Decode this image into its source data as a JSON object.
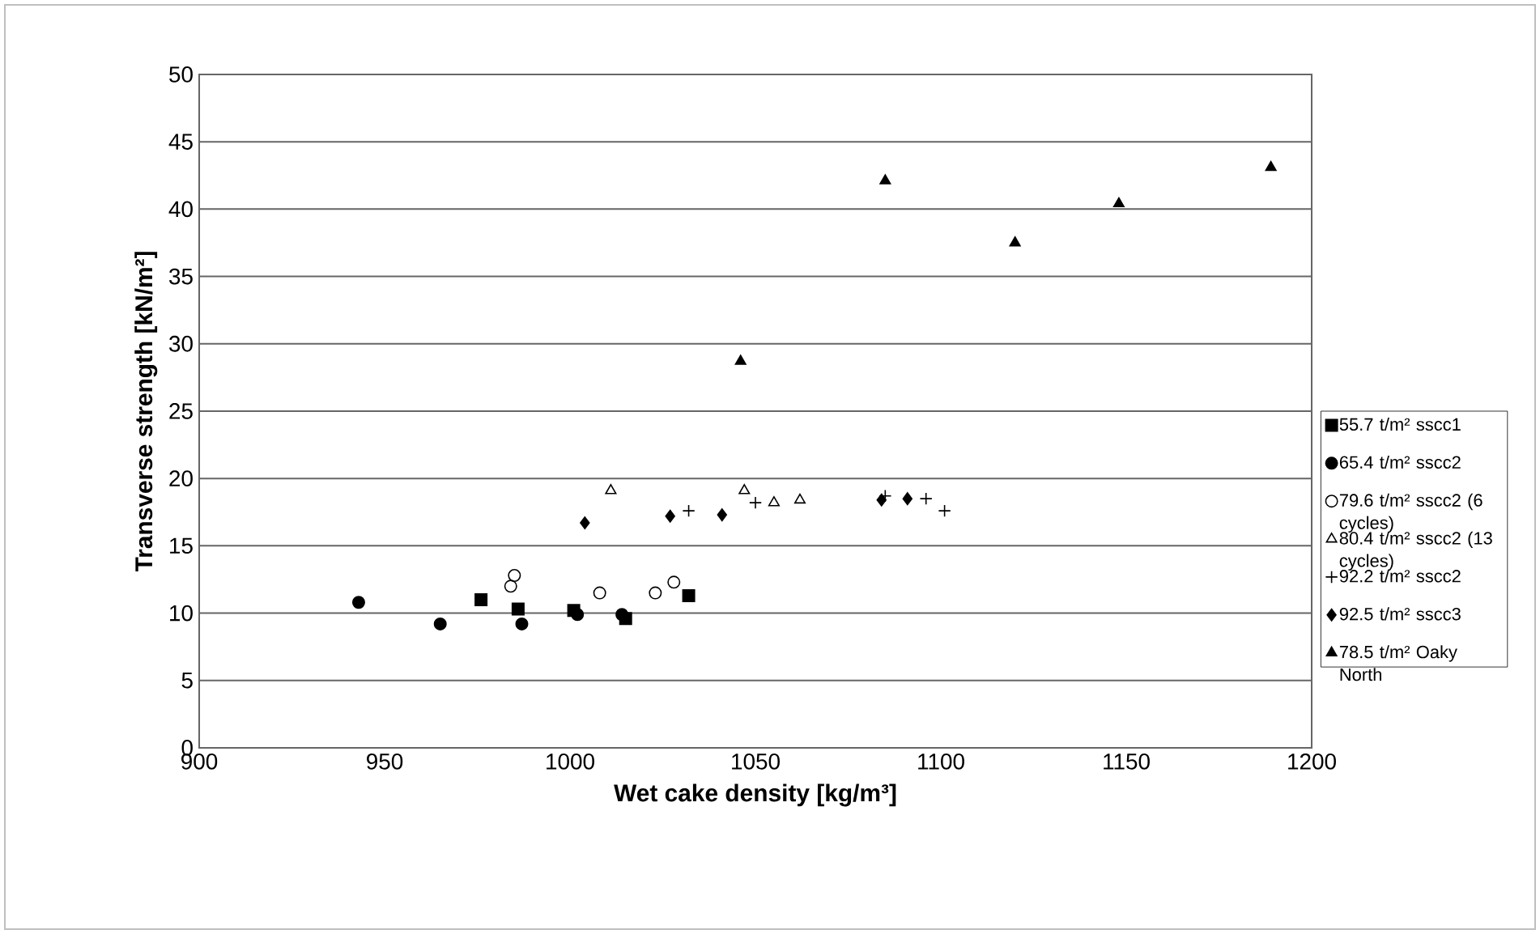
{
  "chart_data": {
    "type": "scatter",
    "xlabel": "Wet cake density [kg/m³]",
    "ylabel": "Transverse strength [kN/m²]",
    "xlim": [
      900,
      1200
    ],
    "xticks": [
      900,
      950,
      1000,
      1050,
      1100,
      1150,
      1200
    ],
    "ylim": [
      0,
      50
    ],
    "yticks": [
      0,
      5,
      10,
      15,
      20,
      25,
      30,
      35,
      40,
      45,
      50
    ],
    "grid": "y",
    "legend": "right",
    "series": [
      {
        "name": "55.7 t/m² sscc1",
        "color": "#000000",
        "marker": "square",
        "x": [
          976,
          986,
          1001,
          1015,
          1032
        ],
        "values": [
          11.0,
          10.3,
          10.2,
          9.6,
          11.3
        ]
      },
      {
        "name": "65.4 t/m² sscc2",
        "color": "#000000",
        "marker": "circle",
        "x": [
          943,
          965,
          987,
          1002,
          1014
        ],
        "values": [
          10.8,
          9.2,
          9.2,
          9.9,
          9.9
        ]
      },
      {
        "name": "79.6 t/m² sscc2 (6 cycles)",
        "color": "#000000",
        "marker": "circle-open",
        "x": [
          984,
          985,
          1008,
          1023,
          1028
        ],
        "values": [
          12.0,
          12.8,
          11.5,
          11.5,
          12.3
        ]
      },
      {
        "name": "80.4 t/m² sscc2 (13 cycles)",
        "color": "#000000",
        "marker": "triangle-open",
        "x": [
          1011,
          1047,
          1055,
          1062
        ],
        "values": [
          19.1,
          19.1,
          18.2,
          18.4
        ]
      },
      {
        "name": "92.2 t/m² sscc2",
        "color": "#000000",
        "marker": "cross",
        "x": [
          1032,
          1050,
          1085,
          1096,
          1101
        ],
        "values": [
          17.6,
          18.2,
          18.7,
          18.5,
          17.6
        ]
      },
      {
        "name": "92.5 t/m² sscc3",
        "color": "#000000",
        "marker": "diamond",
        "x": [
          1004,
          1027,
          1041,
          1084,
          1091
        ],
        "values": [
          16.7,
          17.2,
          17.3,
          18.4,
          18.5
        ]
      },
      {
        "name": "78.5 t/m² Oaky North",
        "color": "#000000",
        "marker": "triangle",
        "x": [
          1046,
          1085,
          1120,
          1148,
          1189
        ],
        "values": [
          28.7,
          42.1,
          37.5,
          40.4,
          43.1
        ]
      }
    ]
  }
}
